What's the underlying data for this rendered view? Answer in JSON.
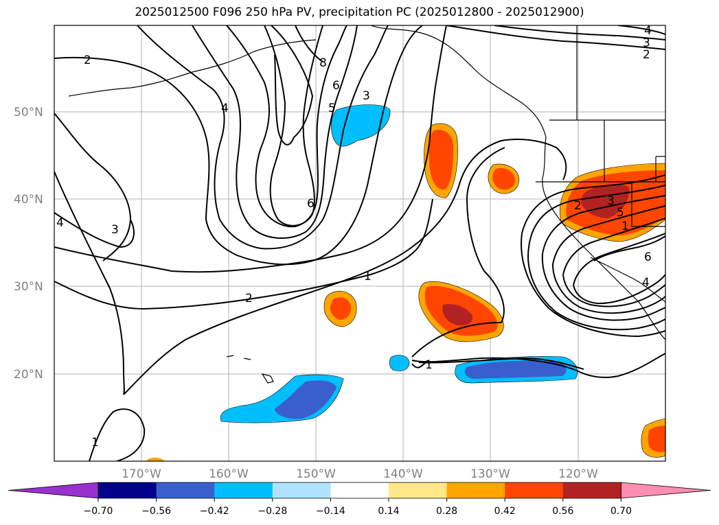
{
  "title": "2025012500 F096 250 hPa PV, precipitation PC (2025012800 - 2025012900)",
  "lat_labels": [
    "50°N",
    "40°N",
    "30°N",
    "20°N"
  ],
  "lon_labels": [
    "170°W",
    "160°W",
    "150°W",
    "140°W",
    "130°W",
    "120°W"
  ],
  "colorbar": {
    "ticks": [
      "−0.70",
      "−0.56",
      "−0.42",
      "−0.28",
      "−0.14",
      "0.14",
      "0.28",
      "0.42",
      "0.56",
      "0.70"
    ],
    "colors": [
      "#9932cc",
      "#00008b",
      "#3a5fcd",
      "#00bfff",
      "#b0e2ff",
      "#ffffff",
      "#ffe88a",
      "#ffa500",
      "#ff4500",
      "#b22222",
      "#ff8eb0"
    ]
  },
  "contour_labels": {
    "c2a": "2",
    "c4a": "4",
    "c8": "8",
    "c6a": "6",
    "c5a": "5",
    "c3a": "3",
    "c6b": "6",
    "c3b": "3",
    "c4b": "4",
    "c1a": "1",
    "c2b": "2",
    "c1b": "1",
    "c1c": "1",
    "c4c": "4",
    "c3c": "3",
    "c2c": "2",
    "c2d": "2",
    "c3d": "3",
    "c5b": "5",
    "c1d": "1",
    "c6c": "6",
    "c4d": "4"
  }
}
